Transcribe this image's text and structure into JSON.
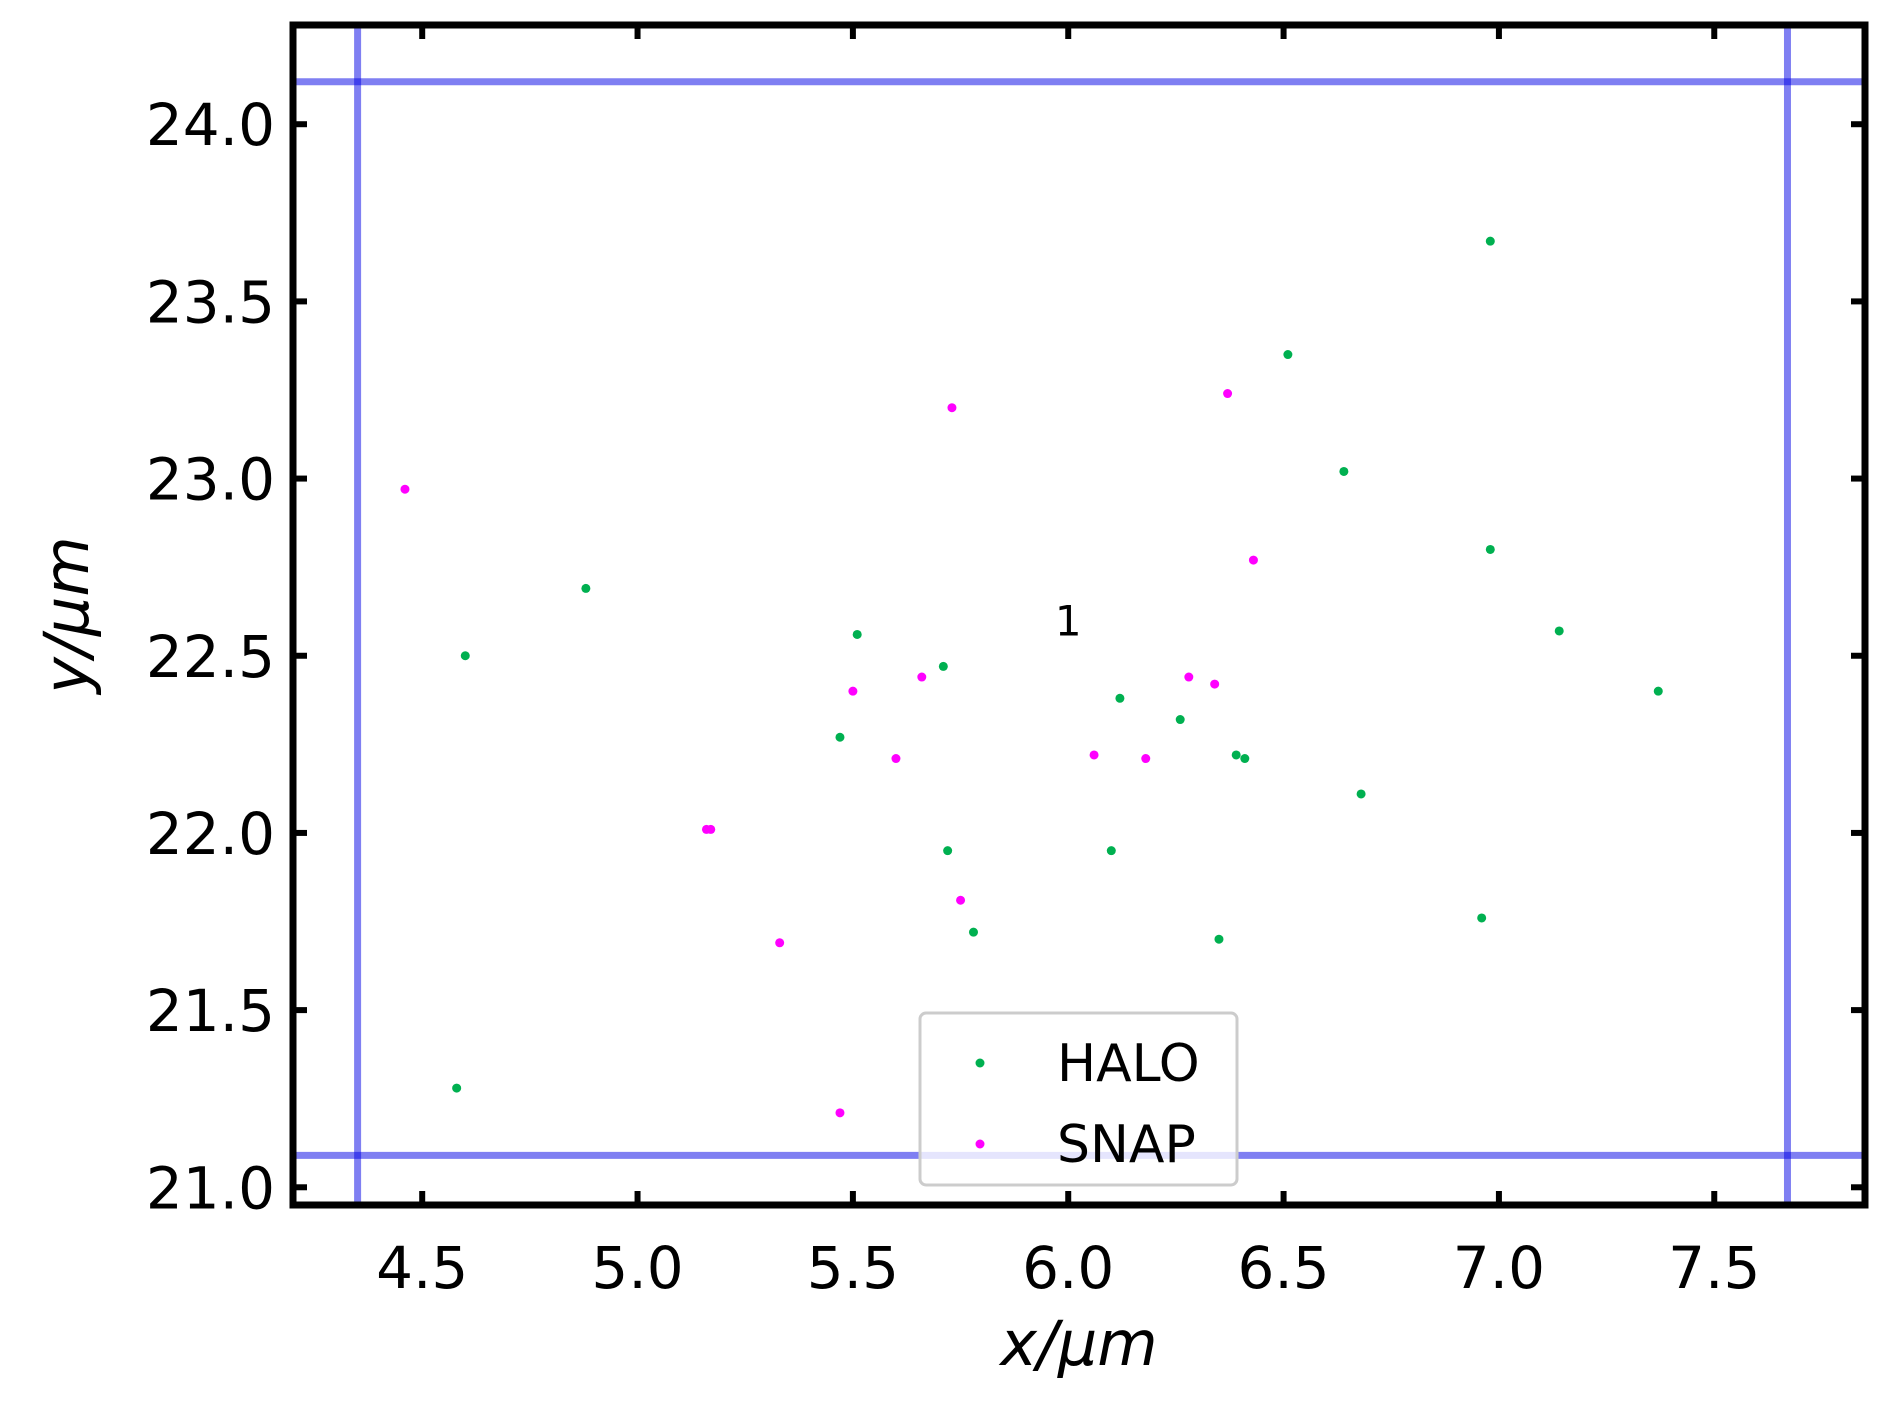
{
  "chart_data": {
    "type": "scatter",
    "title": "",
    "xlabel": "x/μm",
    "ylabel": "y/μm",
    "xlim": [
      4.2,
      7.85
    ],
    "ylim": [
      20.95,
      24.28
    ],
    "xticks": [
      4.5,
      5.0,
      5.5,
      6.0,
      6.5,
      7.0,
      7.5
    ],
    "yticks": [
      21.0,
      21.5,
      22.0,
      22.5,
      23.0,
      23.5,
      24.0
    ],
    "x_tick_labels": [
      "4.5",
      "5.0",
      "5.5",
      "6.0",
      "6.5",
      "7.0",
      "7.5"
    ],
    "y_tick_labels": [
      "21.0",
      "21.5",
      "22.0",
      "22.5",
      "23.0",
      "23.5",
      "24.0"
    ],
    "grid": false,
    "legend_position": "bottom-center",
    "annotation": {
      "text": "1",
      "x": 6.0,
      "y": 22.6
    },
    "boundary_lines": {
      "color": "#0000e6",
      "x": [
        4.35,
        7.67
      ],
      "y": [
        21.09,
        24.12
      ]
    },
    "series": [
      {
        "name": "HALO",
        "color": "#00b050",
        "points": [
          [
            4.6,
            22.5
          ],
          [
            4.88,
            22.69
          ],
          [
            4.58,
            21.28
          ],
          [
            5.51,
            22.56
          ],
          [
            5.47,
            22.27
          ],
          [
            5.71,
            22.47
          ],
          [
            5.72,
            21.95
          ],
          [
            5.78,
            21.72
          ],
          [
            6.1,
            21.95
          ],
          [
            6.12,
            22.38
          ],
          [
            6.26,
            22.32
          ],
          [
            6.39,
            22.22
          ],
          [
            6.41,
            22.21
          ],
          [
            6.35,
            21.7
          ],
          [
            6.51,
            23.35
          ],
          [
            6.64,
            23.02
          ],
          [
            6.68,
            22.11
          ],
          [
            6.96,
            21.76
          ],
          [
            6.98,
            23.67
          ],
          [
            6.98,
            22.8
          ],
          [
            7.14,
            22.57
          ],
          [
            7.37,
            22.4
          ]
        ]
      },
      {
        "name": "SNAP",
        "color": "#ff00ff",
        "points": [
          [
            4.46,
            22.97
          ],
          [
            5.16,
            22.01
          ],
          [
            5.17,
            22.01
          ],
          [
            5.33,
            21.69
          ],
          [
            5.47,
            21.21
          ],
          [
            5.5,
            22.4
          ],
          [
            5.6,
            22.21
          ],
          [
            5.66,
            22.44
          ],
          [
            5.73,
            23.2
          ],
          [
            5.75,
            21.81
          ],
          [
            6.06,
            22.22
          ],
          [
            6.18,
            22.21
          ],
          [
            6.28,
            22.44
          ],
          [
            6.34,
            22.42
          ],
          [
            6.37,
            23.24
          ],
          [
            6.43,
            22.77
          ]
        ]
      }
    ]
  }
}
